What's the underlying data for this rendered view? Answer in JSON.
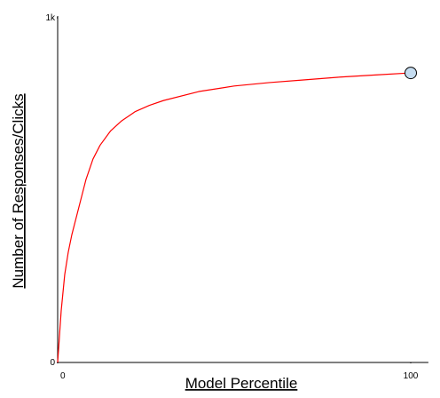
{
  "chart_data": {
    "type": "line",
    "x_label": "Model Percentile",
    "y_label": "Number of Responses/Clicks",
    "x": [
      0,
      1,
      2,
      3,
      4,
      6,
      8,
      10,
      12,
      15,
      18,
      22,
      26,
      30,
      40,
      50,
      60,
      70,
      80,
      90,
      100
    ],
    "series": [
      {
        "color": "#ff0000",
        "values": [
          0,
          150,
          255,
          320,
          370,
          450,
          530,
          590,
          630,
          672,
          700,
          728,
          746,
          760,
          786,
          802,
          812,
          820,
          828,
          834,
          840
        ]
      }
    ],
    "end_marker": true,
    "marker_color": "#c5dcf0",
    "xlim": [
      0,
      105
    ],
    "ylim": [
      0,
      1000
    ],
    "xticks": [
      0,
      100
    ],
    "yticks": [
      0,
      {
        "value": 1000,
        "label": "1k"
      }
    ]
  }
}
